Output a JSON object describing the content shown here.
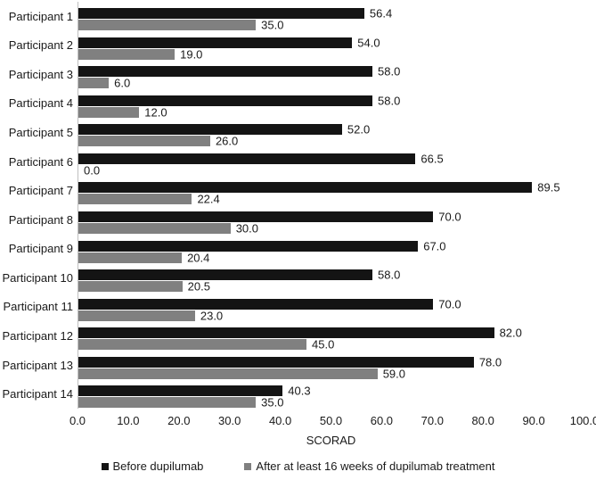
{
  "chart_data": {
    "type": "bar",
    "orientation": "horizontal",
    "title": "",
    "xlabel": "SCORAD",
    "ylabel": "",
    "xlim": [
      0,
      100
    ],
    "x_ticks": [
      0,
      10,
      20,
      30,
      40,
      50,
      60,
      70,
      80,
      90,
      100
    ],
    "x_tick_labels": [
      "0.0",
      "10.0",
      "20.0",
      "30.0",
      "40.0",
      "50.0",
      "60.0",
      "70.0",
      "80.0",
      "90.0",
      "100.0"
    ],
    "grid": false,
    "legend_position": "bottom",
    "value_labels": true,
    "categories": [
      "Participant 1",
      "Participant 2",
      "Participant 3",
      "Participant 4",
      "Participant 5",
      "Participant 6",
      "Participant 7",
      "Participant 8",
      "Participant 9",
      "Participant 10",
      "Participant 11",
      "Participant 12",
      "Participant 13",
      "Participant 14"
    ],
    "series": [
      {
        "name": "Before dupilumab",
        "color": "#141414",
        "values": [
          56.4,
          54.0,
          58.0,
          58.0,
          52.0,
          66.5,
          89.5,
          70.0,
          67.0,
          58.0,
          70.0,
          82.0,
          78.0,
          40.3
        ]
      },
      {
        "name": "After at least 16 weeks of dupilumab treatment",
        "color": "#808080",
        "values": [
          35.0,
          19.0,
          6.0,
          12.0,
          26.0,
          0.0,
          22.4,
          30.0,
          20.4,
          20.5,
          23.0,
          45.0,
          59.0,
          35.0
        ]
      }
    ],
    "colors": {
      "axis_line": "#bfbfbf",
      "text": "#1a1a1a",
      "background": "#ffffff"
    }
  }
}
